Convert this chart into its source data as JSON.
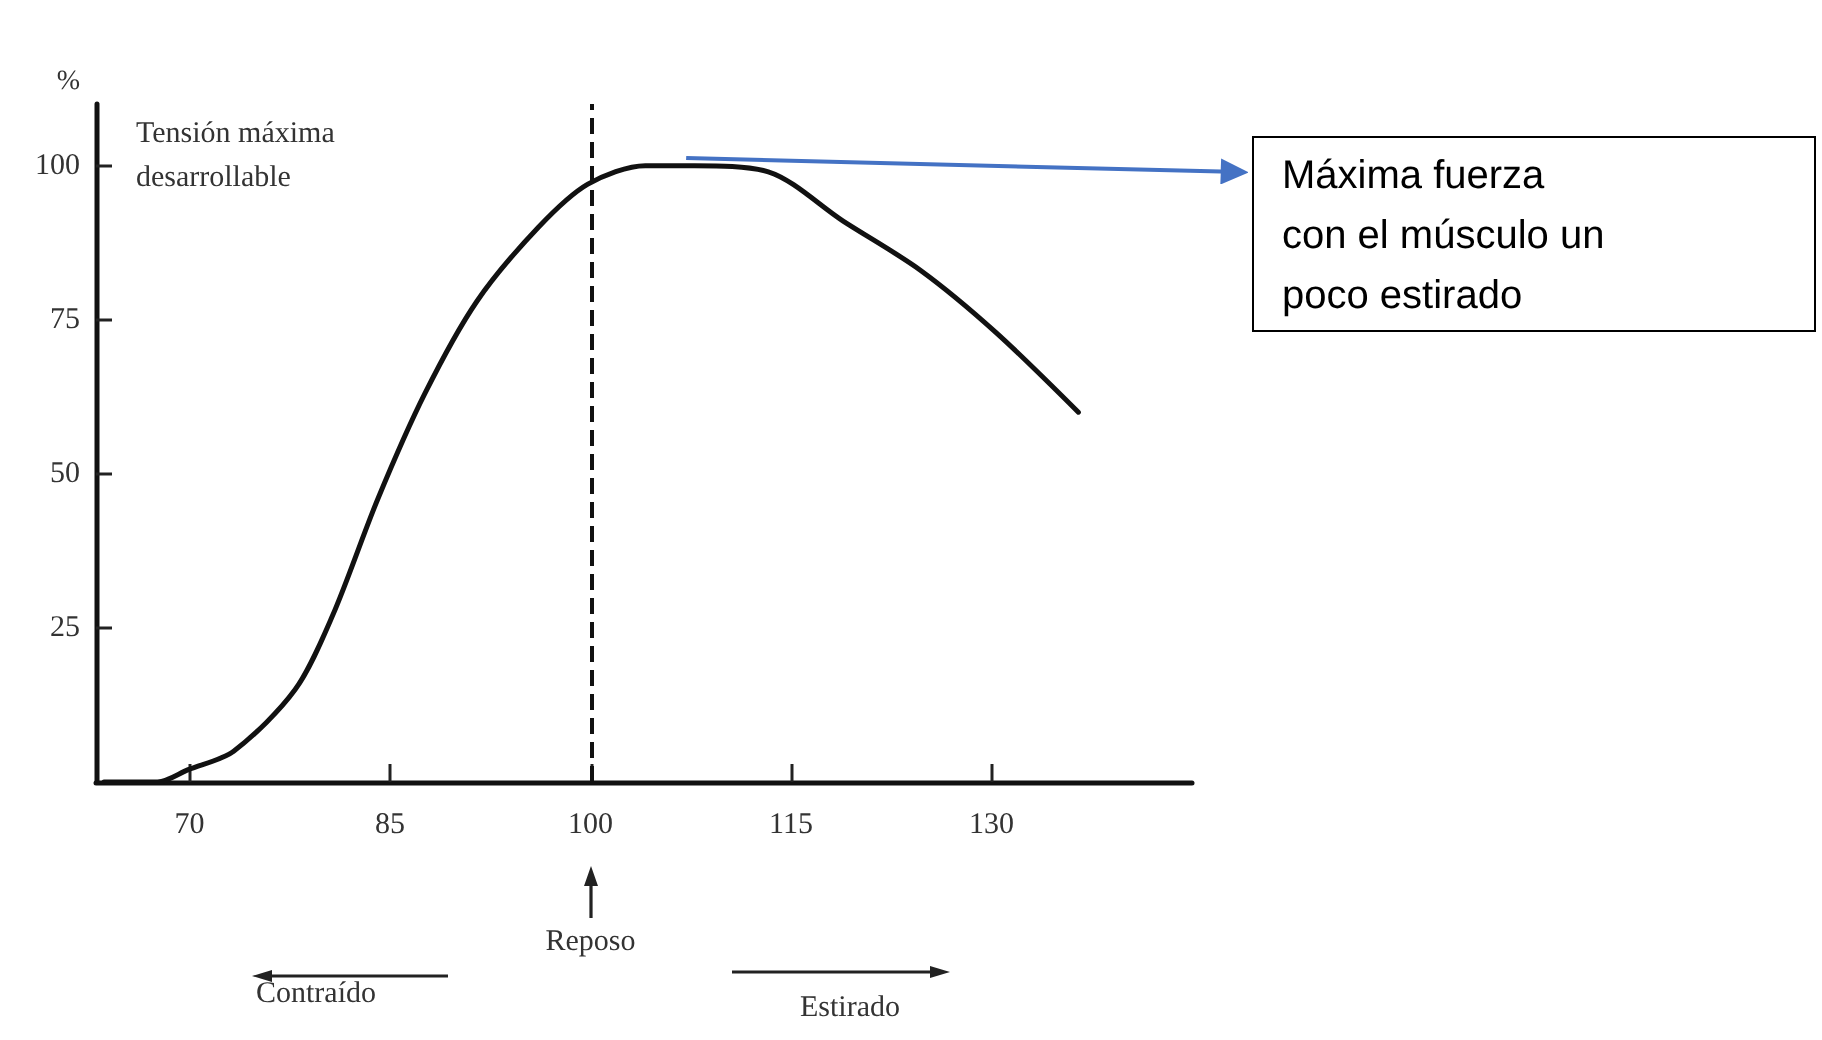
{
  "chart_data": {
    "type": "line",
    "ylabel": "%",
    "x": [
      63.6,
      67.6,
      69.9,
      73.3,
      77.9,
      80.7,
      84.1,
      87.6,
      91.5,
      96.1,
      99.8,
      104.1,
      107.8,
      113.3,
      118.9,
      124.7,
      130.3,
      136.5
    ],
    "series": [
      {
        "color": "#111111",
        "values": [
          0,
          0,
          2,
          5,
          15,
          27,
          46,
          63,
          78,
          90,
          97,
          100,
          100,
          99,
          91,
          83,
          73,
          60
        ]
      }
    ],
    "xlim": [
      63,
      145
    ],
    "xticks": [
      70,
      85,
      100,
      115,
      130
    ],
    "ylim": [
      0,
      110
    ],
    "yticks": [
      25,
      50,
      75,
      100
    ],
    "ref_lines": [
      {
        "axis": "x",
        "value": 100,
        "line_style": "dashed",
        "color": "#111111"
      }
    ],
    "annotations": [
      "Tensión máxima desarrollable",
      "Máxima fuerza con el músculo un poco estirado",
      "Reposo",
      "Contraído",
      "Estirado"
    ],
    "grid": false,
    "marker": "none"
  }
}
